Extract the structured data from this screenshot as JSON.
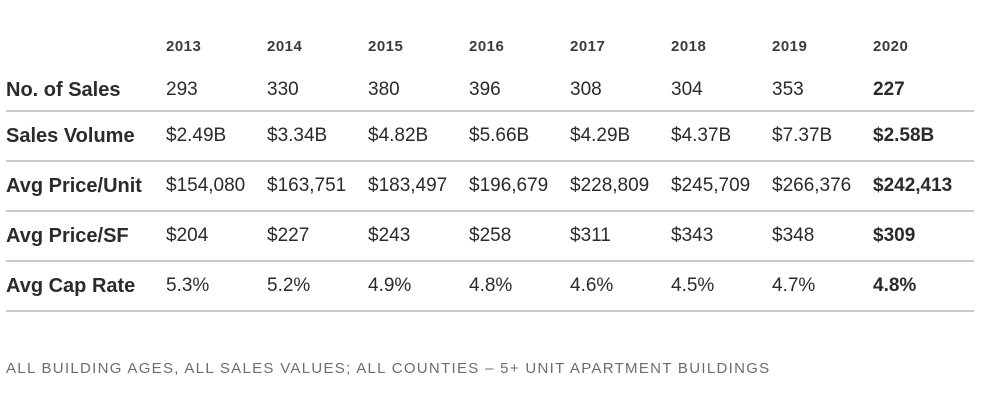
{
  "table": {
    "years": [
      "2013",
      "2014",
      "2015",
      "2016",
      "2017",
      "2018",
      "2019",
      "2020"
    ],
    "rows": [
      {
        "label": "No. of Sales",
        "values": [
          "293",
          "330",
          "380",
          "396",
          "308",
          "304",
          "353",
          "227"
        ]
      },
      {
        "label": "Sales Volume",
        "values": [
          "$2.49B",
          "$3.34B",
          "$4.82B",
          "$5.66B",
          "$4.29B",
          "$4.37B",
          "$7.37B",
          "$2.58B"
        ]
      },
      {
        "label": "Avg Price/Unit",
        "values": [
          "$154,080",
          "$163,751",
          "$183,497",
          "$196,679",
          "$228,809",
          "$245,709",
          "$266,376",
          "$242,413"
        ]
      },
      {
        "label": "Avg Price/SF",
        "values": [
          "$204",
          "$227",
          "$243",
          "$258",
          "$311",
          "$343",
          "$348",
          "$309"
        ]
      },
      {
        "label": "Avg Cap Rate",
        "values": [
          "5.3%",
          "5.2%",
          "4.9%",
          "4.8%",
          "4.6%",
          "4.5%",
          "4.7%",
          "4.8%"
        ]
      }
    ]
  },
  "footnote": "ALL BUILDING AGES, ALL SALES VALUES; ALL COUNTIES – 5+ UNIT APARTMENT BUILDINGS"
}
